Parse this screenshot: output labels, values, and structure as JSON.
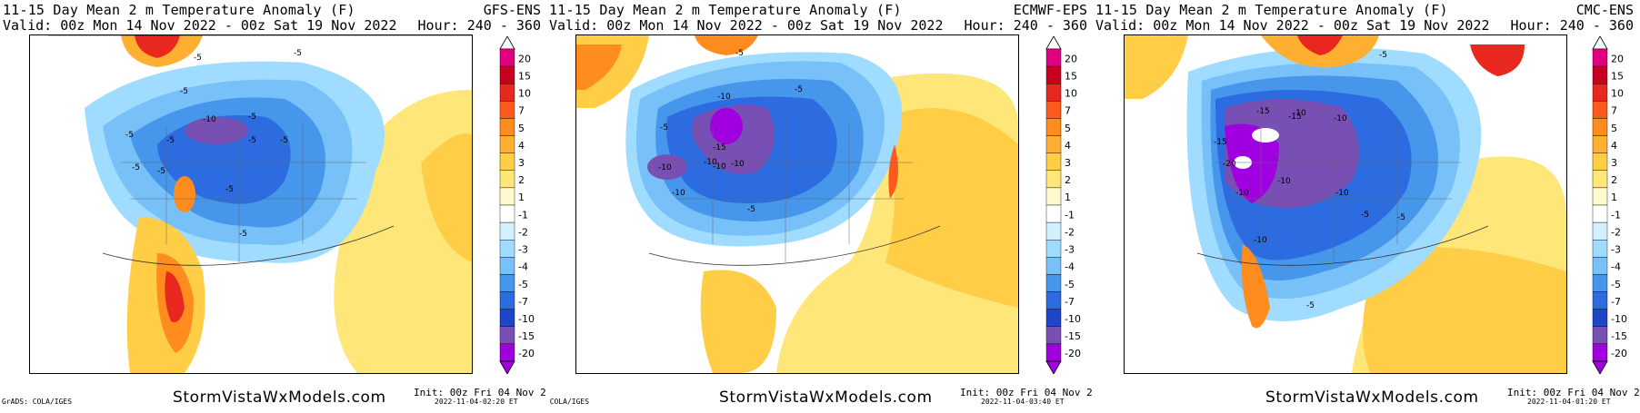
{
  "panels": [
    {
      "title": "11-15 Day Mean 2 m Temperature Anomaly (F)",
      "model": "GFS-ENS",
      "valid": "Valid: 00z Mon 14 Nov 2022 - 00z Sat 19 Nov 2022",
      "hour": "Hour: 240 - 360",
      "website": "StormVistaWxModels.com",
      "init": "Init: 00z Fri 04 Nov 2022",
      "stamp": "2022-11-04-02:20 ET",
      "grads": "GrADS: COLA/IGES",
      "contour_labels": [
        "-5",
        "-5",
        "-5",
        "-5",
        "-5",
        "-5",
        "-5",
        "-10",
        "-5",
        "-5",
        "-5",
        "-5",
        "-5"
      ]
    },
    {
      "title": "11-15 Day Mean 2 m Temperature Anomaly (F)",
      "model": "ECMWF-EPS",
      "valid": "Valid: 00z Mon 14 Nov 2022 - 00z Sat 19 Nov 2022",
      "hour": "Hour: 240 - 360",
      "website": "StormVistaWxModels.com",
      "init": "Init: 00z Fri 04 Nov 2022",
      "stamp": "2022-11-04-03:40 ET",
      "grads": "GrADS: COLA/IGES",
      "contour_labels": [
        "-5",
        "-10",
        "-5",
        "-5",
        "-10",
        "-15",
        "-10",
        "-10",
        "-10",
        "-10",
        "-5"
      ]
    },
    {
      "title": "11-15 Day Mean 2 m Temperature Anomaly (F)",
      "model": "CMC-ENS",
      "valid": "Valid: 00z Mon 14 Nov 2022 - 00z Sat 19 Nov 2022",
      "hour": "Hour: 240 - 360",
      "website": "StormVistaWxModels.com",
      "init": "Init: 00z Fri 04 Nov 2022",
      "stamp": "2022-11-04-01:20 ET",
      "grads": "",
      "contour_labels": [
        "-15",
        "-10",
        "-15",
        "-20",
        "-10",
        "-10",
        "-15",
        "-10",
        "-10",
        "-5",
        "-5",
        "-5",
        "-10",
        "-5"
      ]
    }
  ],
  "colorbar": {
    "labels": [
      "20",
      "15",
      "10",
      "7",
      "5",
      "4",
      "3",
      "2",
      "1",
      "-1",
      "-2",
      "-3",
      "-4",
      "-5",
      "-7",
      "-10",
      "-15",
      "-20"
    ],
    "colors": [
      "#e0007f",
      "#c8001e",
      "#e8281e",
      "#ff5a1e",
      "#ff8c1e",
      "#ffaf32",
      "#ffcd46",
      "#ffe678",
      "#fffacd",
      "#ffffff",
      "#d2f0ff",
      "#a0dcff",
      "#78c0f8",
      "#4696ec",
      "#2c6ce0",
      "#1e46c8",
      "#7850b4",
      "#a000e0"
    ]
  }
}
